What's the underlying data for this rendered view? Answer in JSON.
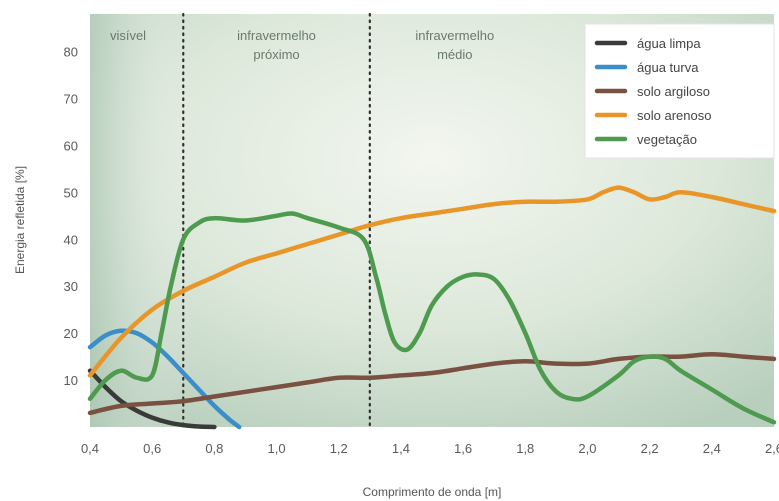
{
  "chart_data": {
    "type": "line",
    "title": "",
    "xlabel": "Comprimento de onda [m]",
    "ylabel": "Energia refletida [%]",
    "xlim": [
      0.4,
      2.6
    ],
    "ylim": [
      0,
      88
    ],
    "x_ticks": [
      0.4,
      0.6,
      0.8,
      1.0,
      1.2,
      1.4,
      1.6,
      1.8,
      2.0,
      2.2,
      2.4,
      2.6
    ],
    "x_tick_labels": [
      "0,4",
      "0,6",
      "0,8",
      "1,0",
      "1,2",
      "1,4",
      "1,6",
      "1,8",
      "2,0",
      "2,2",
      "2,4",
      "2,6"
    ],
    "y_ticks": [
      10,
      20,
      30,
      40,
      50,
      60,
      70,
      80
    ],
    "y_tick_labels": [
      "10",
      "20",
      "30",
      "40",
      "50",
      "60",
      "70",
      "80"
    ],
    "grid": false,
    "legend_position": "top-right",
    "regions": [
      {
        "label": "visível",
        "x_start": 0.4,
        "x_end": 0.7
      },
      {
        "label_lines": [
          "infravermelho",
          "próximo"
        ],
        "x_start": 0.7,
        "x_end": 1.3
      },
      {
        "label_lines": [
          "infravermelho",
          "médio"
        ],
        "x_start": 1.3,
        "x_end": 2.6
      }
    ],
    "dividers": [
      0.7,
      1.3
    ],
    "series": [
      {
        "name": "água limpa",
        "color": "#3a3a3a",
        "points": [
          [
            0.4,
            12
          ],
          [
            0.45,
            8.5
          ],
          [
            0.5,
            5.5
          ],
          [
            0.55,
            3.5
          ],
          [
            0.6,
            2
          ],
          [
            0.65,
            1
          ],
          [
            0.7,
            0.4
          ],
          [
            0.75,
            0.1
          ],
          [
            0.8,
            0
          ]
        ]
      },
      {
        "name": "água turva",
        "color": "#3b8ec8",
        "points": [
          [
            0.4,
            17
          ],
          [
            0.45,
            19.5
          ],
          [
            0.5,
            20.5
          ],
          [
            0.55,
            20
          ],
          [
            0.6,
            18
          ],
          [
            0.65,
            15
          ],
          [
            0.7,
            11.5
          ],
          [
            0.75,
            8
          ],
          [
            0.8,
            4.5
          ],
          [
            0.85,
            1.5
          ],
          [
            0.88,
            0
          ]
        ]
      },
      {
        "name": "solo argiloso",
        "color": "#7a5040",
        "points": [
          [
            0.4,
            3
          ],
          [
            0.5,
            4.5
          ],
          [
            0.6,
            5
          ],
          [
            0.7,
            5.5
          ],
          [
            0.8,
            6.5
          ],
          [
            0.9,
            7.5
          ],
          [
            1.0,
            8.5
          ],
          [
            1.1,
            9.5
          ],
          [
            1.2,
            10.5
          ],
          [
            1.3,
            10.5
          ],
          [
            1.4,
            11
          ],
          [
            1.5,
            11.5
          ],
          [
            1.6,
            12.5
          ],
          [
            1.7,
            13.5
          ],
          [
            1.8,
            14
          ],
          [
            1.9,
            13.5
          ],
          [
            2.0,
            13.5
          ],
          [
            2.1,
            14.5
          ],
          [
            2.2,
            15
          ],
          [
            2.3,
            15
          ],
          [
            2.4,
            15.5
          ],
          [
            2.5,
            15
          ],
          [
            2.6,
            14.5
          ]
        ]
      },
      {
        "name": "solo arenoso",
        "color": "#e8962a",
        "points": [
          [
            0.4,
            11
          ],
          [
            0.5,
            19
          ],
          [
            0.6,
            25
          ],
          [
            0.7,
            29
          ],
          [
            0.8,
            32
          ],
          [
            0.9,
            35
          ],
          [
            1.0,
            37
          ],
          [
            1.1,
            39
          ],
          [
            1.2,
            41
          ],
          [
            1.3,
            43
          ],
          [
            1.4,
            44.5
          ],
          [
            1.5,
            45.5
          ],
          [
            1.6,
            46.5
          ],
          [
            1.7,
            47.5
          ],
          [
            1.8,
            48
          ],
          [
            1.9,
            48
          ],
          [
            2.0,
            48.5
          ],
          [
            2.05,
            50
          ],
          [
            2.1,
            51
          ],
          [
            2.15,
            50
          ],
          [
            2.2,
            48.5
          ],
          [
            2.25,
            49
          ],
          [
            2.3,
            50
          ],
          [
            2.4,
            49
          ],
          [
            2.5,
            47.5
          ],
          [
            2.6,
            46
          ]
        ]
      },
      {
        "name": "vegetação",
        "color": "#4e9a4e",
        "points": [
          [
            0.4,
            6
          ],
          [
            0.45,
            10
          ],
          [
            0.5,
            12
          ],
          [
            0.55,
            10.5
          ],
          [
            0.6,
            11
          ],
          [
            0.63,
            20
          ],
          [
            0.66,
            30
          ],
          [
            0.7,
            40
          ],
          [
            0.75,
            43.5
          ],
          [
            0.8,
            44.5
          ],
          [
            0.9,
            44
          ],
          [
            1.0,
            45
          ],
          [
            1.05,
            45.5
          ],
          [
            1.1,
            44.5
          ],
          [
            1.2,
            42.5
          ],
          [
            1.28,
            40
          ],
          [
            1.32,
            32
          ],
          [
            1.35,
            24
          ],
          [
            1.38,
            18
          ],
          [
            1.42,
            16.5
          ],
          [
            1.46,
            20
          ],
          [
            1.5,
            26
          ],
          [
            1.55,
            30
          ],
          [
            1.6,
            32
          ],
          [
            1.65,
            32.5
          ],
          [
            1.7,
            31.5
          ],
          [
            1.75,
            27
          ],
          [
            1.8,
            20
          ],
          [
            1.85,
            12
          ],
          [
            1.9,
            7.5
          ],
          [
            1.95,
            6
          ],
          [
            2.0,
            6.5
          ],
          [
            2.1,
            11
          ],
          [
            2.15,
            14
          ],
          [
            2.2,
            15
          ],
          [
            2.25,
            14.5
          ],
          [
            2.3,
            12
          ],
          [
            2.4,
            8
          ],
          [
            2.5,
            4
          ],
          [
            2.6,
            1
          ]
        ]
      }
    ]
  }
}
